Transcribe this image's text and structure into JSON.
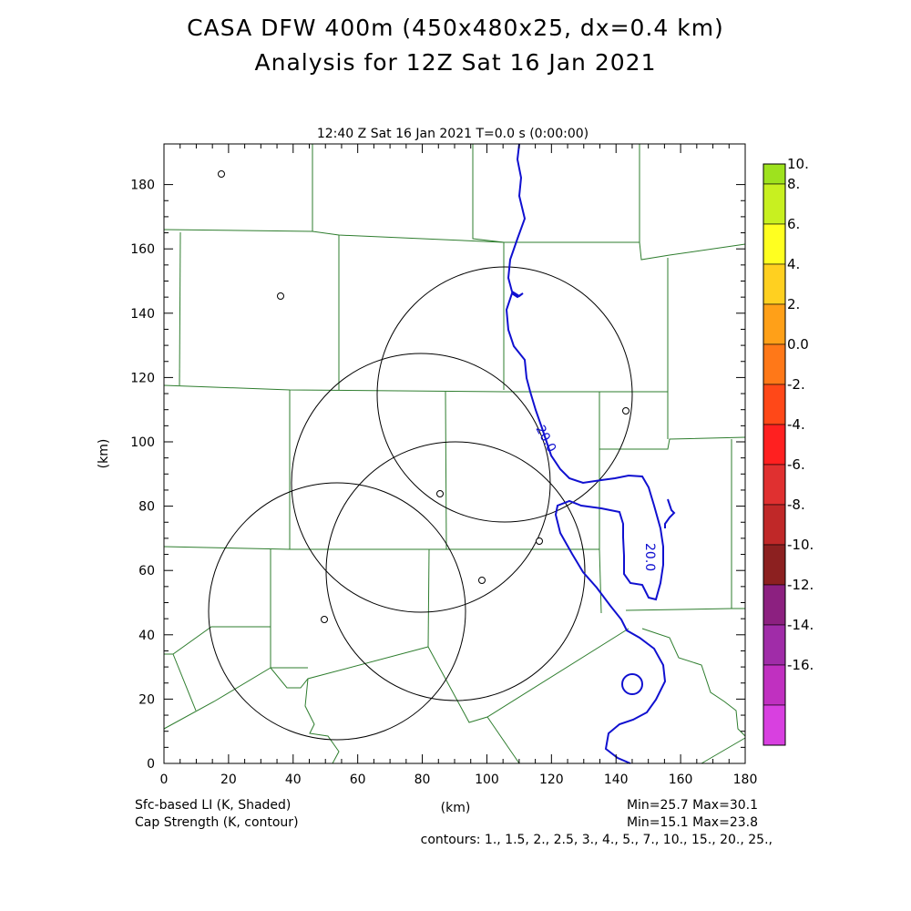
{
  "titles": {
    "line1": "CASA DFW 400m (450x480x25, dx=0.4 km)",
    "line2": "Analysis for 12Z Sat 16 Jan 2021"
  },
  "subtitle": "12:40 Z Sat 16 Jan 2021   T=0.0 s (0:00:00)",
  "axes": {
    "x_label": "(km)",
    "y_label": "(km)",
    "x_ticks": [
      "0",
      "20",
      "40",
      "60",
      "80",
      "100",
      "120",
      "140",
      "160",
      "180"
    ],
    "y_ticks": [
      "0",
      "20",
      "40",
      "60",
      "80",
      "100",
      "120",
      "140",
      "160",
      "180"
    ]
  },
  "footer": {
    "left1": "Sfc-based LI (K, Shaded)",
    "left2": "Cap Strength (K, contour)",
    "right1": "Min=25.7 Max=30.1",
    "right2": "Min=15.1 Max=23.8",
    "contours": "contours: 1., 1.5, 2., 2.5, 3., 4., 5., 7., 10., 15., 20., 25.,"
  },
  "contour_labels": [
    "20.0",
    "20.0"
  ],
  "colorbar": {
    "labels": [
      "10.",
      "8.",
      "6.",
      "4.",
      "2.",
      "0.0",
      "-2.",
      "-4.",
      "-6.",
      "-8.",
      "-10.",
      "-12.",
      "-14.",
      "-16."
    ],
    "colors": [
      "#9ee21e",
      "#c8f020",
      "#ffff20",
      "#ffd020",
      "#ffa018",
      "#ff7818",
      "#ff4818",
      "#ff2020",
      "#e03030",
      "#c02828",
      "#8c2020",
      "#8c2080",
      "#a02ca8",
      "#c030c0",
      "#d840e0"
    ]
  }
}
